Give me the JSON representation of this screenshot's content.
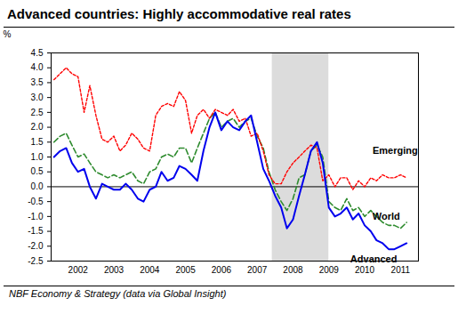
{
  "chart_data": {
    "type": "line",
    "title": "Advanced countries: Highly accommodative real rates",
    "caption": "NBF Economy & Strategy (data via Global Insight)",
    "y_label": "%",
    "x": [
      2001.83,
      2002.0,
      2002.17,
      2002.33,
      2002.5,
      2002.67,
      2002.83,
      2003.0,
      2003.17,
      2003.33,
      2003.5,
      2003.67,
      2003.83,
      2004.0,
      2004.17,
      2004.33,
      2004.5,
      2004.67,
      2004.83,
      2005.0,
      2005.17,
      2005.33,
      2005.5,
      2005.67,
      2005.83,
      2006.0,
      2006.17,
      2006.33,
      2006.5,
      2006.67,
      2006.83,
      2007.0,
      2007.17,
      2007.33,
      2007.5,
      2007.67,
      2007.83,
      2008.0,
      2008.17,
      2008.33,
      2008.5,
      2008.67,
      2008.83,
      2009.0,
      2009.17,
      2009.33,
      2009.5,
      2009.67,
      2009.83,
      2010.0,
      2010.17,
      2010.33,
      2010.5,
      2010.67,
      2010.83,
      2011.0,
      2011.17,
      2011.33,
      2011.5,
      2011.67
    ],
    "series": [
      {
        "name": "World",
        "color": "#2e8b2e",
        "line_style": "dashed",
        "values": [
          1.5,
          1.7,
          1.8,
          1.4,
          1.0,
          1.1,
          0.8,
          0.5,
          0.4,
          0.3,
          0.4,
          0.3,
          0.4,
          0.5,
          0.2,
          0.1,
          0.5,
          0.6,
          1.0,
          1.1,
          1.0,
          1.3,
          1.3,
          0.8,
          1.3,
          1.8,
          2.3,
          2.5,
          2.0,
          2.2,
          2.3,
          2.0,
          2.2,
          2.3,
          1.7,
          1.3,
          0.5,
          -0.1,
          -0.5,
          -0.8,
          -0.4,
          0.3,
          0.4,
          1.2,
          1.4,
          1.0,
          -0.5,
          -0.7,
          -0.8,
          -0.4,
          -0.8,
          -0.7,
          -1.0,
          -0.8,
          -1.0,
          -1.2,
          -1.3,
          -1.3,
          -1.4,
          -1.2
        ]
      },
      {
        "name": "Emerging",
        "color": "#ff0000",
        "line_style": "dotted",
        "values": [
          3.6,
          3.8,
          4.0,
          3.8,
          3.7,
          2.5,
          3.4,
          2.4,
          1.6,
          1.5,
          1.7,
          1.2,
          1.4,
          1.8,
          1.6,
          1.3,
          1.2,
          2.4,
          2.7,
          2.8,
          2.7,
          3.2,
          2.9,
          1.8,
          2.4,
          2.6,
          2.3,
          2.6,
          2.5,
          2.4,
          2.6,
          2.2,
          2.3,
          1.7,
          1.8,
          1.2,
          0.4,
          0.1,
          0.1,
          0.5,
          0.8,
          1.0,
          1.2,
          1.4,
          1.3,
          0.2,
          0.4,
          0.0,
          0.3,
          0.3,
          -0.1,
          0.2,
          0.0,
          0.3,
          0.2,
          0.4,
          0.3,
          0.3,
          0.4,
          0.3
        ]
      },
      {
        "name": "Advanced",
        "color": "#0000ee",
        "line_style": "solid",
        "values": [
          1.0,
          1.2,
          1.3,
          0.8,
          0.5,
          0.6,
          0.0,
          -0.4,
          0.1,
          0.0,
          -0.1,
          -0.1,
          0.1,
          -0.1,
          -0.4,
          -0.5,
          -0.1,
          0.0,
          0.5,
          0.2,
          0.3,
          0.7,
          0.6,
          0.4,
          0.2,
          1.2,
          2.0,
          2.5,
          1.9,
          2.2,
          2.0,
          1.9,
          2.2,
          2.4,
          1.5,
          0.6,
          0.2,
          -0.3,
          -0.7,
          -1.4,
          -1.1,
          -0.3,
          0.4,
          1.2,
          1.5,
          0.8,
          -0.7,
          -1.0,
          -0.9,
          -0.7,
          -1.1,
          -0.9,
          -1.3,
          -1.5,
          -1.8,
          -1.9,
          -2.1,
          -2.1,
          -2.0,
          -1.9
        ]
      }
    ],
    "annotations": [
      {
        "text": "Emerging",
        "x": 2011.35,
        "y": 1.2
      },
      {
        "text": "World",
        "x": 2011.1,
        "y": -1.0
      },
      {
        "text": "Advanced",
        "x": 2010.75,
        "y": -2.45
      }
    ],
    "shaded_range": [
      2007.92,
      2009.5
    ],
    "hline": 0,
    "xlim": [
      2001.75,
      2012.0
    ],
    "xticks": [
      {
        "value": 2002.5,
        "label": "2002"
      },
      {
        "value": 2003.5,
        "label": "2003"
      },
      {
        "value": 2004.5,
        "label": "2004"
      },
      {
        "value": 2005.5,
        "label": "2005"
      },
      {
        "value": 2006.5,
        "label": "2006"
      },
      {
        "value": 2007.5,
        "label": "2007"
      },
      {
        "value": 2008.5,
        "label": "2008"
      },
      {
        "value": 2009.5,
        "label": "2009"
      },
      {
        "value": 2010.5,
        "label": "2010"
      },
      {
        "value": 2011.5,
        "label": "2011"
      }
    ],
    "ylim": [
      -2.5,
      4.5
    ],
    "yticks": [
      4.5,
      {
        "value": 4,
        "label": "4.0"
      },
      3.5,
      {
        "value": 3,
        "label": "3.0"
      },
      2.5,
      {
        "value": 2,
        "label": "2.0"
      },
      1.5,
      {
        "value": 1,
        "label": "1.0"
      },
      0.5,
      {
        "value": 0,
        "label": "0.0"
      },
      -0.5,
      {
        "value": -1,
        "label": "-1.0"
      },
      -1.5,
      {
        "value": -2,
        "label": "-2.0"
      },
      -2.5
    ],
    "grid": false
  }
}
